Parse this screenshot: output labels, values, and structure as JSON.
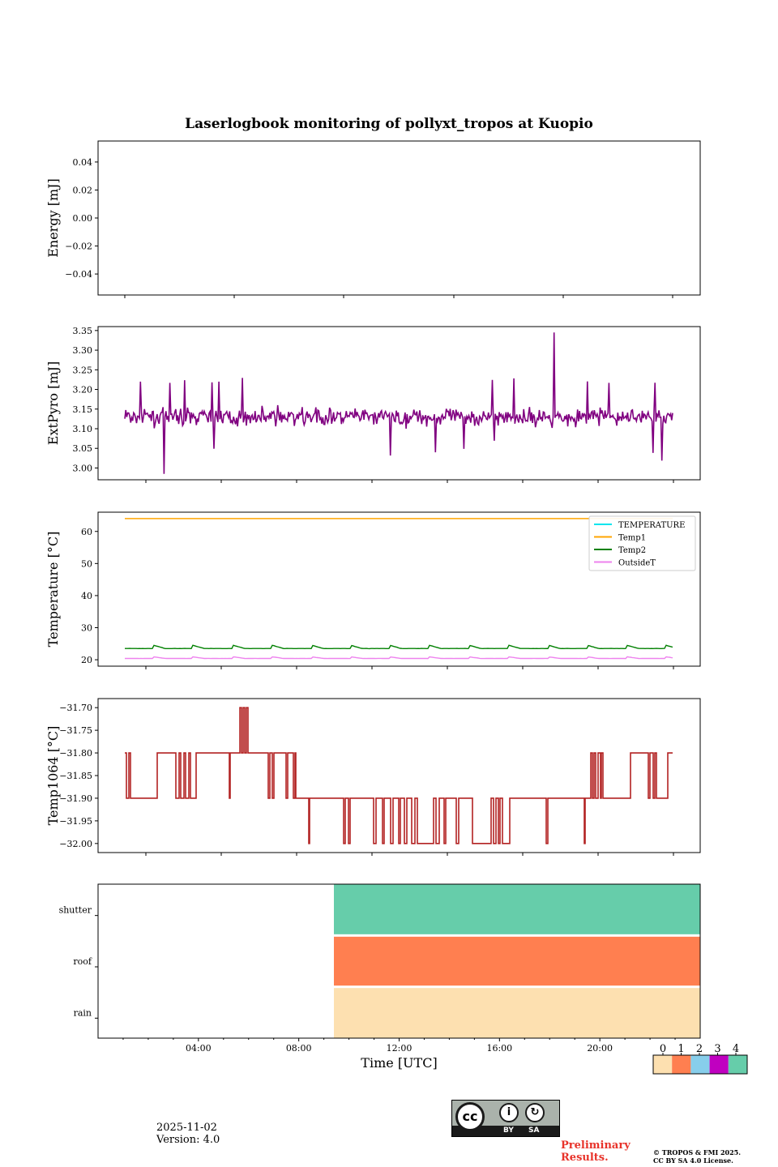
{
  "title": "Laserlogbook monitoring of pollyxt_tropos at Kuopio",
  "footer": {
    "date": "2025-11-02",
    "version": "Version: 4.0",
    "preliminary": "Preliminary Results.",
    "copyright_line1": "© TROPOS & FMI 2025.",
    "copyright_line2": "CC BY SA 4.0 License.",
    "cc_logo": "cc-by-sa-icon",
    "cc_label_by": "BY",
    "cc_label_sa": "SA"
  },
  "chart_data": [
    {
      "type": "line",
      "name": "energy",
      "ylabel": "Energy [mJ]",
      "ylim": [
        -0.055,
        0.055
      ],
      "yticks": [
        -0.04,
        -0.02,
        0.0,
        0.02,
        0.04
      ],
      "ytick_labels": [
        "−0.04",
        "−0.02",
        "0.00",
        "0.02",
        "0.04"
      ],
      "series": []
    },
    {
      "type": "line",
      "name": "extpyro",
      "ylabel": "ExtPyro [mJ]",
      "ylim": [
        2.97,
        3.36
      ],
      "yticks": [
        3.0,
        3.05,
        3.1,
        3.15,
        3.2,
        3.25,
        3.3,
        3.35
      ],
      "ytick_labels": [
        "3.00",
        "3.05",
        "3.10",
        "3.15",
        "3.20",
        "3.25",
        "3.30",
        "3.35"
      ],
      "color": "#800080",
      "series": [
        {
          "name": "ExtPyro",
          "baseline": 3.13,
          "noise": 0.04,
          "min": 2.985,
          "max": 3.345,
          "x_start": 1.0,
          "x_end": 23.0
        }
      ]
    },
    {
      "type": "line",
      "name": "temperature",
      "ylabel": "Temperature [°C]",
      "ylim": [
        18,
        66
      ],
      "yticks": [
        20,
        30,
        40,
        50,
        60
      ],
      "ytick_labels": [
        "20",
        "30",
        "40",
        "50",
        "60"
      ],
      "legend": {
        "placement": "top-right",
        "entries": [
          "TEMPERATURE",
          "Temp1",
          "Temp2",
          "OutsideT"
        ]
      },
      "series": [
        {
          "name": "TEMPERATURE",
          "color": "#00e5ee",
          "values": []
        },
        {
          "name": "Temp1",
          "color": "#ffa500",
          "constant": 64
        },
        {
          "name": "Temp2",
          "color": "#008000",
          "baseline": 23.5,
          "spike": 24.5
        },
        {
          "name": "OutsideT",
          "color": "#ee82ee",
          "baseline": 20.4,
          "spike": 20.9
        }
      ]
    },
    {
      "type": "line",
      "name": "temp1064",
      "ylabel": "Temp1064 [°C]",
      "ylim": [
        -32.02,
        -31.68
      ],
      "yticks": [
        -32.0,
        -31.95,
        -31.9,
        -31.85,
        -31.8,
        -31.75,
        -31.7
      ],
      "ytick_labels": [
        "−32.00",
        "−31.95",
        "−31.90",
        "−31.85",
        "−31.80",
        "−31.75",
        "−31.70"
      ],
      "color": "#b22222",
      "series": [
        {
          "name": "Temp1064",
          "levels": [
            -32.0,
            -31.9,
            -31.8,
            -31.7
          ]
        }
      ]
    },
    {
      "type": "heatmap",
      "name": "status",
      "xlabel": "Time [UTC]",
      "xlim": [
        0,
        24
      ],
      "xticks": [
        4,
        8,
        12,
        16,
        20
      ],
      "xtick_labels": [
        "04:00",
        "08:00",
        "12:00",
        "16:00",
        "20:00"
      ],
      "rows": [
        "shutter",
        "roof",
        "rain"
      ],
      "start_hour": 9.4,
      "row_values": [
        4,
        1,
        0
      ],
      "colorbar": {
        "ticks": [
          "0",
          "1",
          "2",
          "3",
          "4"
        ],
        "colors": [
          "#fde0b0",
          "#ff7f50",
          "#87ceeb",
          "#c000c0",
          "#66cdaa"
        ]
      }
    }
  ]
}
